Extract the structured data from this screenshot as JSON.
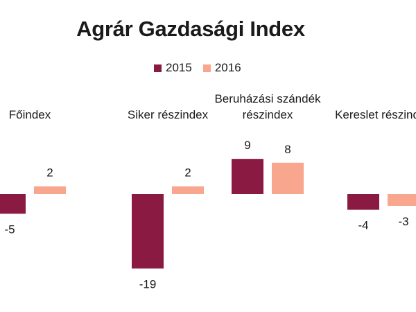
{
  "chart_data": {
    "type": "bar",
    "title": "Agrár Gazdasági Index",
    "categories": [
      [
        "Főindex"
      ],
      [
        "Siker részindex"
      ],
      [
        "Beruházási szándék",
        "részindex"
      ],
      [
        "Kereslet részindex"
      ]
    ],
    "series": [
      {
        "name": "2015",
        "values": [
          -5,
          -19,
          9,
          -4
        ]
      },
      {
        "name": "2016",
        "values": [
          2,
          2,
          8,
          -3
        ]
      }
    ],
    "colors": {
      "2015": "#8b1a42",
      "2016": "#f8a68d"
    },
    "legend": "top",
    "grid": false
  }
}
